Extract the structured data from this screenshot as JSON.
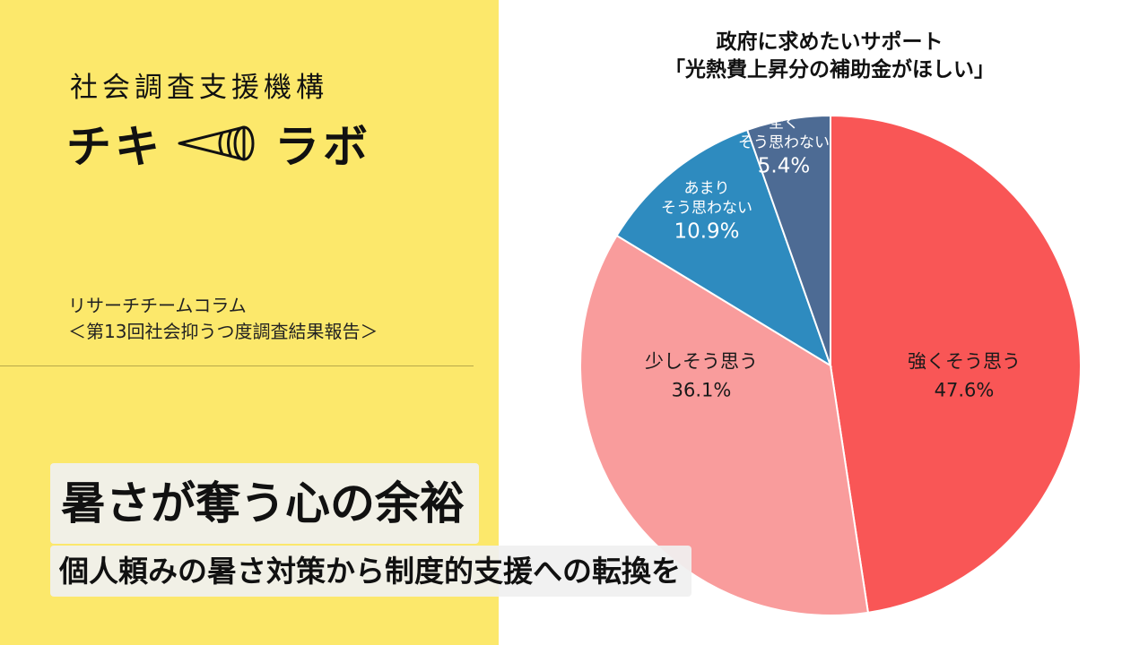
{
  "branding": {
    "org_name": "社会調査支援機構",
    "logo_left": "チキ",
    "logo_right": "ラボ",
    "logo_icon": "megaphone-icon"
  },
  "column": {
    "line1": "リサーチチームコラム",
    "line2": "＜第13回社会抑うつ度調査結果報告＞"
  },
  "headline": {
    "title": "暑さが奪う心の余裕",
    "subtitle": "個人頼みの暑さ対策から制度的支援への転換を"
  },
  "colors": {
    "left_panel": "#fce86b",
    "strongly_agree": "#f95656",
    "somewhat_agree": "#f99c9c",
    "not_really": "#2e8bbf",
    "not_at_all": "#4d6b94"
  },
  "chart_data": {
    "type": "pie",
    "title": [
      "政府に求めたいサポート",
      "「光熱費上昇分の補助金がほしい」"
    ],
    "slices": [
      {
        "label": [
          "強くそう思う"
        ],
        "value": 47.6,
        "display": "47.6%",
        "color": "#f95656",
        "text_color": "#1a1a1a"
      },
      {
        "label": [
          "少しそう思う"
        ],
        "value": 36.1,
        "display": "36.1%",
        "color": "#f99c9c",
        "text_color": "#1a1a1a"
      },
      {
        "label": [
          "あまり",
          "そう思わない"
        ],
        "value": 10.9,
        "display": "10.9%",
        "color": "#2e8bbf",
        "text_color": "#ffffff"
      },
      {
        "label": [
          "全く",
          "そう思わない"
        ],
        "value": 5.4,
        "display": "5.4%",
        "color": "#4d6b94",
        "text_color": "#ffffff"
      }
    ],
    "start": "12 o'clock",
    "direction": "clockwise"
  }
}
